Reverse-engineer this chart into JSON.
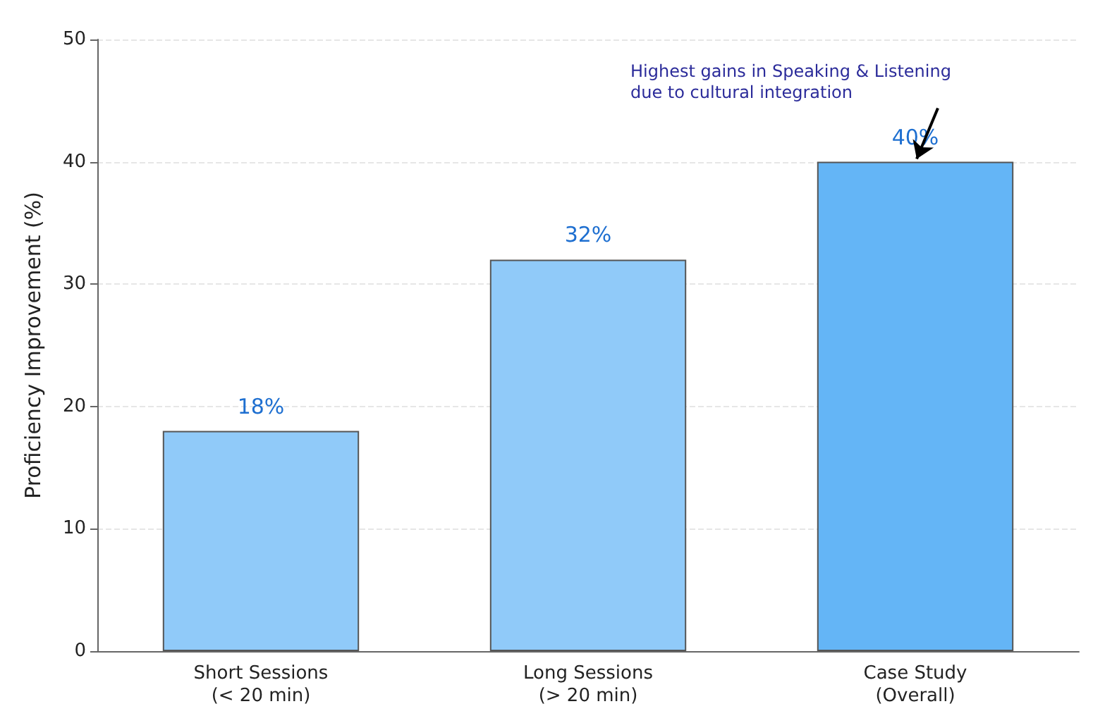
{
  "chart_data": {
    "type": "bar",
    "ylabel": "Proficiency Improvement (%)",
    "categories": [
      "Short Sessions\n(< 20 min)",
      "Long Sessions\n(> 20 min)",
      "Case Study\n(Overall)"
    ],
    "values": [
      18,
      32,
      40
    ],
    "colors": [
      "#90caf9",
      "#90caf9",
      "#64b5f6"
    ],
    "value_labels": [
      "18%",
      "32%",
      "40%"
    ],
    "ylim": [
      0,
      50
    ],
    "yticks": [
      0,
      10,
      20,
      30,
      40,
      50
    ],
    "grid": "y",
    "annotations": [
      {
        "text": "Highest gains in Speaking & Listening\ndue to cultural integration",
        "x": "Case Study\n(Overall)",
        "y": 40
      }
    ]
  }
}
